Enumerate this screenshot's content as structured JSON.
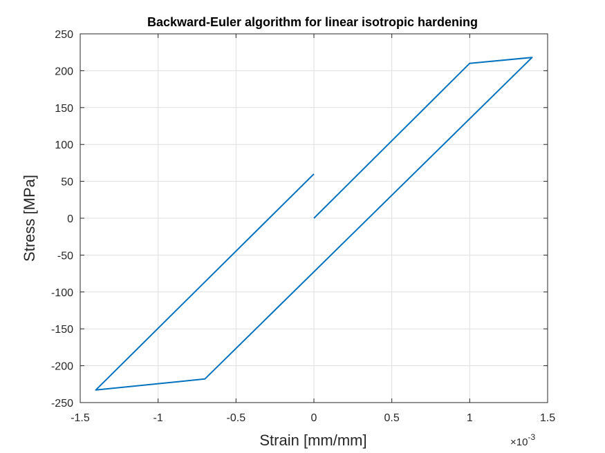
{
  "chart_data": {
    "type": "line",
    "title": "Backward-Euler algorithm for linear isotropic hardening",
    "xlabel": "Strain [mm/mm]",
    "ylabel": "Stress [MPa]",
    "x_exponent_base": "×10",
    "x_exponent_power": "-3",
    "xlim": [
      -0.0015,
      0.0015
    ],
    "ylim": [
      -250,
      250
    ],
    "x_ticks": [
      -0.0015,
      -0.001,
      -0.0005,
      0,
      0.0005,
      0.001,
      0.0015
    ],
    "x_tick_labels": [
      "-1.5",
      "-1",
      "-0.5",
      "0",
      "0.5",
      "1",
      "1.5"
    ],
    "y_ticks": [
      -250,
      -200,
      -150,
      -100,
      -50,
      0,
      50,
      100,
      150,
      200,
      250
    ],
    "y_tick_labels": [
      "-250",
      "-200",
      "-150",
      "-100",
      "-50",
      "0",
      "50",
      "100",
      "150",
      "200",
      "250"
    ],
    "grid": true,
    "series": [
      {
        "color": "#0072BD",
        "x": [
          0,
          0.001,
          0.0014,
          -0.0007,
          -0.0014,
          0
        ],
        "y": [
          0,
          210,
          218,
          -218,
          -233,
          60
        ]
      }
    ]
  }
}
